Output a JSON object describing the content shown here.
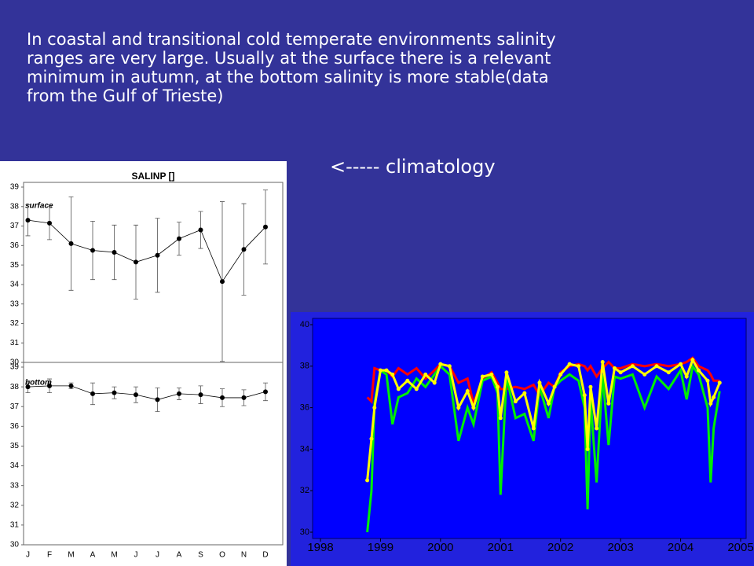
{
  "intro_lines": [
    "In coastal and transitional cold temperate environments salinity",
    "ranges are very large. Usually at the surface there is a relevant",
    "minimum in autumn, at the bottom salinity is more stable(data",
    "from the Gulf of Trieste)"
  ],
  "note": "<----- climatology",
  "chart_data": [
    {
      "type": "line",
      "title": "SALINP []",
      "annotation": "surface",
      "color": "#000000",
      "values": [
        37.3,
        37.15,
        36.1,
        35.75,
        35.65,
        35.15,
        35.5,
        36.35,
        36.8,
        34.15,
        35.8,
        36.95
      ],
      "errors": [
        0.8,
        0.85,
        2.4,
        1.5,
        1.4,
        1.9,
        1.9,
        0.85,
        0.95,
        4.1,
        2.35,
        1.9
      ],
      "ylim": [
        30,
        39
      ],
      "yticks": [
        30,
        31,
        32,
        33,
        34,
        35,
        36,
        37,
        38,
        39
      ]
    },
    {
      "type": "line",
      "annotation": "bottom",
      "color": "#000000",
      "categories": [
        "J",
        "F",
        "M",
        "A",
        "M",
        "J",
        "J",
        "A",
        "S",
        "O",
        "N",
        "D"
      ],
      "values": [
        38.0,
        38.05,
        38.05,
        37.65,
        37.7,
        37.6,
        37.35,
        37.65,
        37.6,
        37.45,
        37.45,
        37.75
      ],
      "errors": [
        0.3,
        0.35,
        0.15,
        0.55,
        0.3,
        0.4,
        0.6,
        0.3,
        0.45,
        0.45,
        0.4,
        0.45
      ],
      "ylim": [
        30,
        39
      ],
      "yticks": [
        30,
        31,
        32,
        33,
        34,
        35,
        36,
        37,
        38,
        39
      ]
    },
    {
      "type": "line",
      "x": [
        1998.78,
        1998.85,
        1998.9,
        1999.0,
        1999.1,
        1999.2,
        1999.3,
        1999.45,
        1999.6,
        1999.75,
        1999.9,
        2000.0,
        2000.15,
        2000.3,
        2000.45,
        2000.55,
        2000.7,
        2000.85,
        2000.95,
        2001.0,
        2001.1,
        2001.25,
        2001.4,
        2001.55,
        2001.65,
        2001.8,
        2001.9,
        2002.0,
        2002.15,
        2002.3,
        2002.4,
        2002.45,
        2002.5,
        2002.6,
        2002.7,
        2002.8,
        2002.9,
        2003.0,
        2003.2,
        2003.4,
        2003.6,
        2003.8,
        2004.0,
        2004.1,
        2004.2,
        2004.3,
        2004.45,
        2004.5,
        2004.55,
        2004.65
      ],
      "series": [
        {
          "color": "#ff0000",
          "values": [
            36.5,
            36.3,
            37.9,
            37.8,
            37.8,
            37.5,
            37.9,
            37.6,
            37.9,
            37.4,
            37.8,
            38.1,
            38.0,
            37.2,
            37.4,
            36.2,
            37.4,
            37.7,
            37.2,
            36.9,
            36.9,
            37.0,
            36.9,
            37.1,
            36.6,
            37.2,
            37.0,
            37.7,
            38.0,
            38.1,
            38.0,
            37.8,
            38.0,
            37.5,
            37.9,
            38.2,
            37.9,
            37.9,
            38.1,
            38.0,
            38.1,
            38.0,
            38.1,
            38.2,
            38.4,
            38.0,
            37.8,
            37.6,
            37.3,
            37.3
          ]
        },
        {
          "color": "#00ee00",
          "values": [
            30.0,
            32.0,
            36.2,
            37.8,
            37.6,
            35.2,
            36.5,
            36.7,
            37.4,
            37.0,
            37.6,
            38.0,
            37.6,
            34.4,
            36.0,
            35.2,
            37.3,
            37.5,
            36.7,
            31.8,
            37.5,
            35.5,
            35.7,
            34.4,
            37.0,
            35.5,
            37.0,
            37.3,
            37.6,
            37.3,
            36.0,
            31.1,
            36.4,
            32.4,
            37.6,
            34.2,
            37.5,
            37.4,
            37.6,
            36.0,
            37.5,
            36.9,
            37.8,
            36.4,
            38.0,
            37.6,
            36.0,
            32.4,
            35.0,
            36.8
          ]
        },
        {
          "color": "#ffff00",
          "markers": true,
          "values": [
            32.5,
            34.5,
            36.0,
            37.8,
            37.8,
            37.6,
            36.9,
            37.3,
            36.9,
            37.6,
            37.2,
            38.1,
            38.0,
            36.0,
            36.8,
            36.0,
            37.5,
            37.6,
            37.0,
            35.5,
            37.7,
            36.3,
            36.7,
            35.0,
            37.2,
            36.2,
            37.0,
            37.6,
            38.1,
            38.0,
            36.6,
            34.0,
            37.0,
            35.0,
            38.2,
            36.2,
            37.9,
            37.7,
            38.0,
            37.6,
            38.0,
            37.7,
            38.1,
            37.5,
            38.3,
            37.8,
            37.3,
            36.2,
            36.5,
            37.2
          ]
        }
      ],
      "xlim": [
        1998,
        2005
      ],
      "xticks": [
        1998,
        1999,
        2000,
        2001,
        2002,
        2003,
        2004,
        2005
      ],
      "ylim": [
        30,
        40
      ],
      "yticks": [
        30,
        32,
        34,
        36,
        38,
        40
      ]
    }
  ]
}
